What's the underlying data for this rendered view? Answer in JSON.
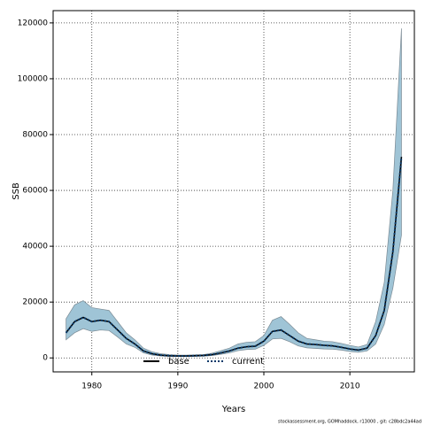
{
  "chart_data": {
    "type": "line",
    "xlabel": "Years",
    "ylabel": "SSB",
    "footer": "stockassessment.org, GOMhaddock, r13000 , git: c28bdc2a44ad",
    "x": [
      1977,
      1978,
      1979,
      1980,
      1981,
      1982,
      1983,
      1984,
      1985,
      1986,
      1987,
      1988,
      1989,
      1990,
      1991,
      1992,
      1993,
      1994,
      1995,
      1996,
      1997,
      1998,
      1999,
      2000,
      2001,
      2002,
      2003,
      2004,
      2005,
      2006,
      2007,
      2008,
      2009,
      2010,
      2011,
      2012,
      2013,
      2014,
      2015,
      2016
    ],
    "band": {
      "color": "#9fc4d6",
      "edge": "#7a8a94",
      "upper": [
        14000,
        19000,
        20500,
        18000,
        17500,
        17000,
        13000,
        9000,
        6500,
        3500,
        2200,
        1500,
        1200,
        1000,
        1000,
        1100,
        1200,
        1700,
        2600,
        3500,
        5000,
        5600,
        5800,
        8000,
        13500,
        14800,
        12000,
        9000,
        7000,
        6500,
        6000,
        5800,
        5200,
        4500,
        3900,
        4800,
        13000,
        27000,
        60000,
        118000
      ],
      "lower": [
        6500,
        9000,
        10500,
        9500,
        10000,
        9800,
        7500,
        5000,
        3800,
        1800,
        1000,
        700,
        500,
        450,
        450,
        550,
        600,
        850,
        1300,
        1800,
        2600,
        3000,
        3100,
        4500,
        6800,
        7000,
        5800,
        4300,
        3600,
        3400,
        3200,
        3100,
        2800,
        2300,
        2000,
        2500,
        5000,
        12000,
        25000,
        44000
      ]
    },
    "series": [
      {
        "name": "base",
        "color": "#000000",
        "values": [
          9000,
          13000,
          14500,
          13000,
          13500,
          13000,
          10000,
          7000,
          5000,
          2500,
          1500,
          1000,
          800,
          700,
          700,
          800,
          900,
          1200,
          1800,
          2500,
          3500,
          4000,
          4200,
          6000,
          9500,
          10000,
          8000,
          6000,
          5000,
          4800,
          4500,
          4300,
          3800,
          3200,
          2800,
          3500,
          8000,
          17000,
          38000,
          72000
        ]
      },
      {
        "name": "current",
        "color": "#0a3a6a",
        "dash": true,
        "values": [
          9000,
          13000,
          14500,
          13000,
          13500,
          13000,
          10000,
          7000,
          5000,
          2500,
          1500,
          1000,
          800,
          700,
          700,
          800,
          900,
          1200,
          1800,
          2500,
          3500,
          4000,
          4200,
          6000,
          9500,
          10000,
          8000,
          6000,
          5000,
          4800,
          4500,
          4300,
          3800,
          3200,
          2800,
          3500,
          8000,
          17000,
          38000,
          72000
        ]
      }
    ],
    "xlim": [
      1975.5,
      2017.5
    ],
    "ylim": [
      -5000,
      124400
    ],
    "xticks": [
      1980,
      1990,
      2000,
      2010
    ],
    "yticks": [
      0,
      20000,
      40000,
      60000,
      80000,
      100000,
      120000
    ],
    "grid": true,
    "legend": "bottom"
  }
}
